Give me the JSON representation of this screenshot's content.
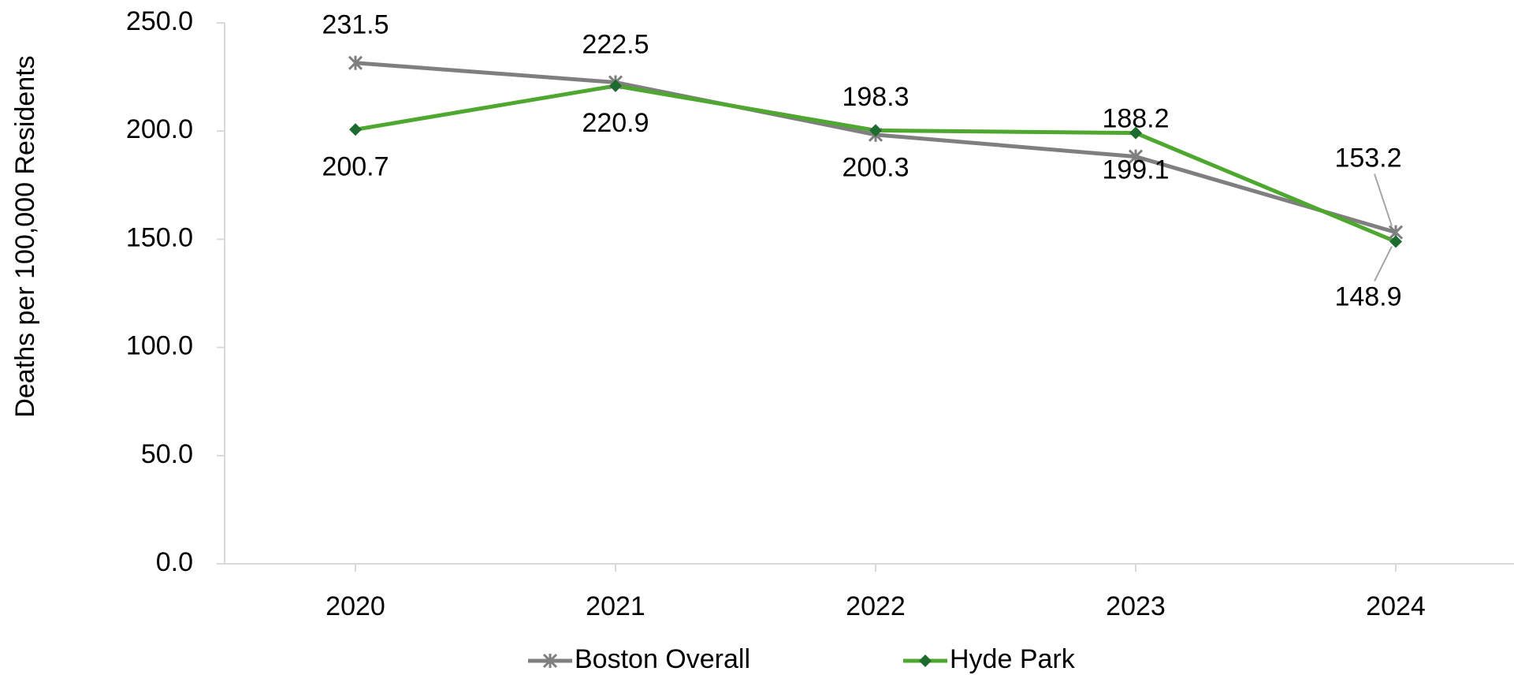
{
  "chart_data": {
    "type": "line",
    "y_label": "Deaths per 100,000 Residents",
    "categories": [
      "2020",
      "2021",
      "2022",
      "2023",
      "2024"
    ],
    "series": [
      {
        "name": "Boston Overall",
        "color": "#7f7f7f",
        "marker": "star",
        "values": [
          231.5,
          222.5,
          198.3,
          188.2,
          153.2
        ]
      },
      {
        "name": "Hyde Park",
        "color": "#4ea72e",
        "marker_color": "#1e6b30",
        "marker": "diamond",
        "values": [
          200.7,
          220.9,
          200.3,
          199.1,
          148.9
        ]
      }
    ],
    "ylim": [
      0,
      250
    ],
    "yticks": [
      {
        "value": 0,
        "label": "0.0"
      },
      {
        "value": 50,
        "label": "50.0"
      },
      {
        "value": 100,
        "label": "100.0"
      },
      {
        "value": 150,
        "label": "150.0"
      },
      {
        "value": 200,
        "label": "200.0"
      },
      {
        "value": 250,
        "label": "250.0"
      }
    ],
    "grid": false,
    "legend": "bottom"
  }
}
